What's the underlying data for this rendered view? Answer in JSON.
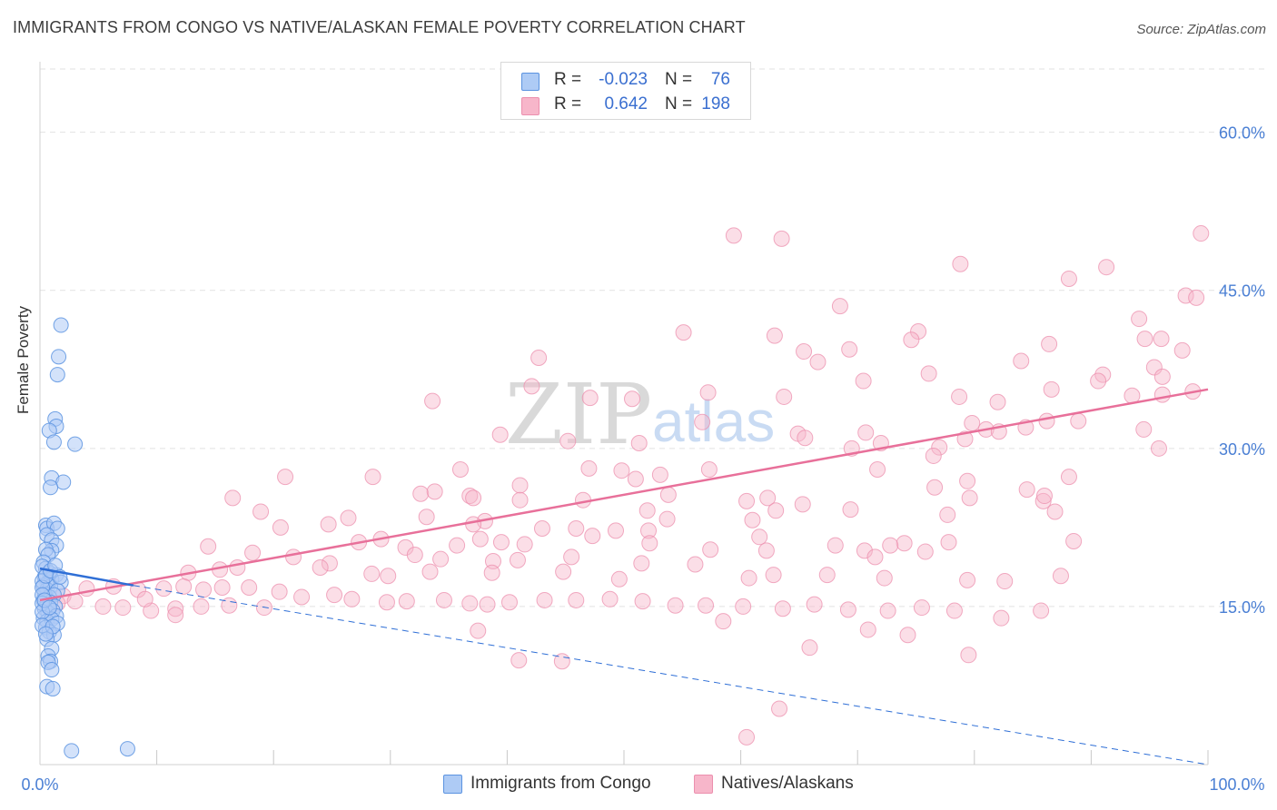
{
  "title": "IMMIGRANTS FROM CONGO VS NATIVE/ALASKAN FEMALE POVERTY CORRELATION CHART",
  "source": "Source: ZipAtlas.com",
  "watermark": {
    "zip": "ZIP",
    "atlas": "atlas"
  },
  "colors": {
    "congo_fill": "#aecbf5",
    "congo_stroke": "#5b93e0",
    "congo_line": "#2f6fd6",
    "native_fill": "#f7b6ca",
    "native_stroke": "#ec8fae",
    "native_line": "#e8709a",
    "tick": "#4a7fd4",
    "grid": "#e2e2e2"
  },
  "legend": {
    "rows": [
      {
        "label": "R =",
        "r": "-0.023",
        "n_label": "N =",
        "n": "76"
      },
      {
        "label": "R =",
        "r": "0.642",
        "n_label": "N =",
        "n": "198"
      }
    ]
  },
  "bottom_legend": [
    "Immigrants from Congo",
    "Natives/Alaskans"
  ],
  "chart_data": {
    "type": "scatter",
    "title": "IMMIGRANTS FROM CONGO VS NATIVE/ALASKAN FEMALE POVERTY CORRELATION CHART",
    "xlabel": "",
    "ylabel": "Female Poverty",
    "xlim": [
      0,
      100
    ],
    "ylim": [
      0,
      66
    ],
    "x_tick_labels": [
      "0.0%",
      "100.0%"
    ],
    "y_ticks": [
      15,
      30,
      45,
      60
    ],
    "y_tick_labels": [
      "15.0%",
      "30.0%",
      "45.0%",
      "60.0%"
    ],
    "grid": true,
    "series": [
      {
        "name": "Immigrants from Congo",
        "R": -0.023,
        "N": 76,
        "trend_solid": [
          [
            0,
            18.6
          ],
          [
            8,
            17.0
          ]
        ],
        "trend_dashed": [
          [
            8,
            17.0
          ],
          [
            100,
            0.0
          ]
        ],
        "points": [
          [
            1.8,
            41.7
          ],
          [
            1.6,
            38.7
          ],
          [
            1.5,
            37.0
          ],
          [
            1.3,
            32.8
          ],
          [
            1.4,
            32.1
          ],
          [
            0.8,
            31.7
          ],
          [
            1.2,
            30.6
          ],
          [
            3.0,
            30.4
          ],
          [
            1.0,
            27.2
          ],
          [
            2.0,
            26.8
          ],
          [
            0.9,
            26.3
          ],
          [
            0.5,
            22.7
          ],
          [
            0.6,
            22.4
          ],
          [
            1.2,
            22.9
          ],
          [
            1.5,
            22.4
          ],
          [
            0.6,
            21.8
          ],
          [
            1.0,
            21.3
          ],
          [
            1.4,
            20.8
          ],
          [
            1.0,
            20.3
          ],
          [
            0.5,
            20.4
          ],
          [
            0.7,
            19.9
          ],
          [
            0.3,
            19.2
          ],
          [
            0.5,
            18.6
          ],
          [
            0.8,
            18.2
          ],
          [
            1.4,
            18.0
          ],
          [
            0.4,
            17.8
          ],
          [
            0.7,
            17.3
          ],
          [
            1.0,
            17.6
          ],
          [
            1.8,
            17.3
          ],
          [
            0.3,
            17.0
          ],
          [
            0.6,
            16.6
          ],
          [
            0.9,
            16.9
          ],
          [
            1.5,
            16.5
          ],
          [
            0.4,
            16.2
          ],
          [
            0.8,
            15.9
          ],
          [
            1.2,
            16.1
          ],
          [
            0.3,
            15.6
          ],
          [
            0.6,
            15.2
          ],
          [
            0.9,
            15.4
          ],
          [
            1.3,
            15.0
          ],
          [
            0.4,
            14.8
          ],
          [
            0.7,
            14.4
          ],
          [
            1.1,
            14.6
          ],
          [
            1.4,
            14.1
          ],
          [
            0.3,
            13.9
          ],
          [
            0.6,
            13.6
          ],
          [
            1.0,
            13.8
          ],
          [
            1.5,
            13.4
          ],
          [
            0.5,
            13.0
          ],
          [
            0.8,
            12.6
          ],
          [
            1.2,
            12.3
          ],
          [
            0.6,
            11.9
          ],
          [
            1.0,
            11.0
          ],
          [
            0.7,
            10.3
          ],
          [
            0.9,
            9.8
          ],
          [
            0.7,
            9.7
          ],
          [
            1.0,
            9.0
          ],
          [
            0.6,
            7.4
          ],
          [
            1.1,
            7.2
          ],
          [
            2.7,
            1.3
          ],
          [
            7.5,
            1.5
          ],
          [
            0.2,
            18.8
          ],
          [
            0.2,
            17.4
          ],
          [
            0.2,
            16.8
          ],
          [
            0.2,
            16.1
          ],
          [
            0.2,
            15.3
          ],
          [
            0.2,
            14.5
          ],
          [
            0.2,
            13.2
          ],
          [
            0.5,
            17.9
          ],
          [
            0.9,
            18.4
          ],
          [
            1.3,
            18.9
          ],
          [
            1.7,
            17.8
          ],
          [
            0.4,
            15.6
          ],
          [
            0.8,
            14.9
          ],
          [
            1.1,
            13.1
          ],
          [
            0.5,
            12.4
          ]
        ]
      },
      {
        "name": "Natives/Alaskans",
        "R": 0.642,
        "N": 198,
        "trend_solid": [
          [
            0,
            15.6
          ],
          [
            100,
            35.6
          ]
        ],
        "points": [
          [
            99.4,
            50.4
          ],
          [
            59.4,
            50.2
          ],
          [
            63.5,
            49.9
          ],
          [
            78.8,
            47.5
          ],
          [
            91.3,
            47.2
          ],
          [
            88.1,
            46.1
          ],
          [
            98.1,
            44.5
          ],
          [
            99.0,
            44.3
          ],
          [
            68.5,
            43.5
          ],
          [
            94.1,
            42.3
          ],
          [
            55.1,
            41.0
          ],
          [
            62.9,
            40.7
          ],
          [
            75.2,
            41.1
          ],
          [
            74.6,
            40.3
          ],
          [
            96.0,
            40.4
          ],
          [
            86.4,
            39.9
          ],
          [
            94.6,
            40.4
          ],
          [
            69.3,
            39.4
          ],
          [
            65.4,
            39.2
          ],
          [
            97.8,
            39.3
          ],
          [
            66.6,
            38.2
          ],
          [
            84.0,
            38.3
          ],
          [
            42.7,
            38.6
          ],
          [
            91.0,
            37.0
          ],
          [
            95.4,
            37.7
          ],
          [
            76.1,
            37.1
          ],
          [
            90.6,
            36.4
          ],
          [
            70.5,
            36.4
          ],
          [
            42.1,
            35.9
          ],
          [
            86.6,
            35.6
          ],
          [
            96.1,
            36.8
          ],
          [
            57.2,
            35.3
          ],
          [
            98.7,
            35.4
          ],
          [
            93.5,
            35.0
          ],
          [
            96.1,
            35.1
          ],
          [
            63.7,
            34.9
          ],
          [
            78.7,
            34.9
          ],
          [
            33.6,
            34.5
          ],
          [
            47.1,
            34.8
          ],
          [
            50.7,
            34.7
          ],
          [
            82.0,
            34.4
          ],
          [
            56.7,
            32.5
          ],
          [
            79.8,
            32.4
          ],
          [
            86.2,
            32.6
          ],
          [
            88.9,
            32.6
          ],
          [
            84.4,
            32.0
          ],
          [
            81.0,
            31.8
          ],
          [
            94.5,
            31.8
          ],
          [
            39.4,
            31.3
          ],
          [
            64.9,
            31.4
          ],
          [
            70.7,
            31.5
          ],
          [
            65.5,
            31.0
          ],
          [
            45.2,
            30.7
          ],
          [
            82.1,
            31.6
          ],
          [
            79.2,
            30.9
          ],
          [
            77.0,
            30.1
          ],
          [
            95.8,
            30.0
          ],
          [
            69.5,
            30.0
          ],
          [
            72.0,
            30.5
          ],
          [
            76.5,
            29.3
          ],
          [
            57.3,
            28.0
          ],
          [
            71.7,
            28.0
          ],
          [
            51.3,
            30.5
          ],
          [
            36.0,
            28.0
          ],
          [
            47.0,
            28.1
          ],
          [
            49.8,
            27.9
          ],
          [
            51.0,
            27.1
          ],
          [
            53.1,
            27.5
          ],
          [
            88.1,
            27.3
          ],
          [
            28.5,
            27.3
          ],
          [
            21.0,
            27.3
          ],
          [
            41.1,
            26.5
          ],
          [
            46.5,
            25.1
          ],
          [
            53.8,
            25.6
          ],
          [
            62.3,
            25.3
          ],
          [
            65.3,
            24.7
          ],
          [
            76.6,
            26.3
          ],
          [
            79.4,
            26.9
          ],
          [
            84.5,
            26.1
          ],
          [
            32.6,
            25.7
          ],
          [
            33.8,
            25.9
          ],
          [
            36.8,
            25.5
          ],
          [
            41.1,
            25.1
          ],
          [
            16.5,
            25.3
          ],
          [
            37.1,
            25.3
          ],
          [
            52.0,
            24.1
          ],
          [
            60.5,
            25.0
          ],
          [
            63.0,
            24.1
          ],
          [
            79.6,
            25.3
          ],
          [
            85.9,
            25.0
          ],
          [
            86.9,
            24.0
          ],
          [
            18.9,
            24.0
          ],
          [
            26.4,
            23.4
          ],
          [
            33.1,
            23.5
          ],
          [
            38.1,
            23.1
          ],
          [
            53.7,
            23.3
          ],
          [
            61.0,
            23.2
          ],
          [
            69.4,
            24.2
          ],
          [
            77.7,
            23.7
          ],
          [
            86.0,
            25.5
          ],
          [
            20.6,
            22.5
          ],
          [
            24.7,
            22.8
          ],
          [
            29.2,
            21.4
          ],
          [
            37.1,
            22.8
          ],
          [
            43.0,
            22.4
          ],
          [
            45.9,
            22.4
          ],
          [
            49.3,
            22.2
          ],
          [
            52.1,
            22.2
          ],
          [
            61.6,
            21.6
          ],
          [
            68.1,
            20.8
          ],
          [
            74.0,
            21.0
          ],
          [
            27.3,
            21.1
          ],
          [
            31.3,
            20.6
          ],
          [
            35.7,
            20.8
          ],
          [
            37.7,
            21.4
          ],
          [
            39.5,
            21.1
          ],
          [
            41.5,
            20.9
          ],
          [
            47.3,
            21.7
          ],
          [
            52.2,
            21.0
          ],
          [
            57.4,
            20.4
          ],
          [
            62.2,
            20.3
          ],
          [
            70.6,
            20.3
          ],
          [
            72.8,
            20.8
          ],
          [
            77.8,
            21.1
          ],
          [
            88.5,
            21.2
          ],
          [
            14.4,
            20.7
          ],
          [
            18.2,
            20.1
          ],
          [
            21.7,
            19.7
          ],
          [
            24.8,
            19.1
          ],
          [
            32.1,
            19.9
          ],
          [
            34.3,
            19.5
          ],
          [
            38.8,
            19.3
          ],
          [
            40.9,
            19.4
          ],
          [
            45.5,
            19.7
          ],
          [
            51.5,
            19.1
          ],
          [
            56.1,
            19.0
          ],
          [
            71.5,
            19.7
          ],
          [
            75.8,
            20.2
          ],
          [
            12.7,
            18.2
          ],
          [
            15.4,
            18.5
          ],
          [
            16.9,
            18.7
          ],
          [
            24.0,
            18.7
          ],
          [
            28.4,
            18.1
          ],
          [
            29.8,
            17.9
          ],
          [
            33.4,
            18.3
          ],
          [
            38.7,
            18.2
          ],
          [
            44.8,
            18.3
          ],
          [
            49.6,
            17.6
          ],
          [
            60.7,
            17.7
          ],
          [
            62.8,
            18.0
          ],
          [
            67.4,
            18.0
          ],
          [
            72.3,
            17.7
          ],
          [
            79.4,
            17.5
          ],
          [
            82.6,
            17.4
          ],
          [
            87.4,
            17.9
          ],
          [
            4.0,
            16.7
          ],
          [
            6.3,
            16.9
          ],
          [
            8.4,
            16.6
          ],
          [
            10.6,
            16.7
          ],
          [
            12.3,
            16.9
          ],
          [
            14.0,
            16.6
          ],
          [
            15.6,
            16.8
          ],
          [
            17.9,
            16.8
          ],
          [
            20.5,
            16.4
          ],
          [
            22.4,
            15.9
          ],
          [
            25.2,
            16.1
          ],
          [
            26.7,
            15.7
          ],
          [
            29.7,
            15.4
          ],
          [
            31.4,
            15.5
          ],
          [
            34.6,
            15.6
          ],
          [
            36.8,
            15.3
          ],
          [
            38.3,
            15.2
          ],
          [
            40.2,
            15.4
          ],
          [
            43.2,
            15.6
          ],
          [
            45.9,
            15.6
          ],
          [
            48.8,
            15.7
          ],
          [
            51.6,
            15.5
          ],
          [
            54.4,
            15.1
          ],
          [
            57.0,
            15.1
          ],
          [
            60.2,
            15.0
          ],
          [
            63.6,
            14.8
          ],
          [
            66.3,
            15.2
          ],
          [
            69.2,
            14.7
          ],
          [
            72.6,
            14.6
          ],
          [
            75.5,
            14.9
          ],
          [
            78.3,
            14.6
          ],
          [
            82.3,
            13.9
          ],
          [
            85.7,
            14.6
          ],
          [
            7.1,
            14.9
          ],
          [
            9.5,
            14.6
          ],
          [
            11.6,
            14.8
          ],
          [
            13.8,
            15.0
          ],
          [
            16.2,
            15.1
          ],
          [
            19.2,
            14.9
          ],
          [
            37.5,
            12.7
          ],
          [
            58.5,
            13.6
          ],
          [
            65.9,
            11.1
          ],
          [
            70.9,
            12.8
          ],
          [
            74.3,
            12.3
          ],
          [
            79.5,
            10.4
          ],
          [
            41.0,
            9.9
          ],
          [
            44.7,
            9.8
          ],
          [
            63.3,
            5.3
          ],
          [
            60.5,
            2.6
          ],
          [
            2.0,
            16.0
          ],
          [
            1.5,
            15.3
          ],
          [
            3.0,
            15.5
          ],
          [
            5.4,
            15.0
          ],
          [
            9.0,
            15.7
          ],
          [
            11.6,
            14.2
          ]
        ]
      }
    ]
  }
}
